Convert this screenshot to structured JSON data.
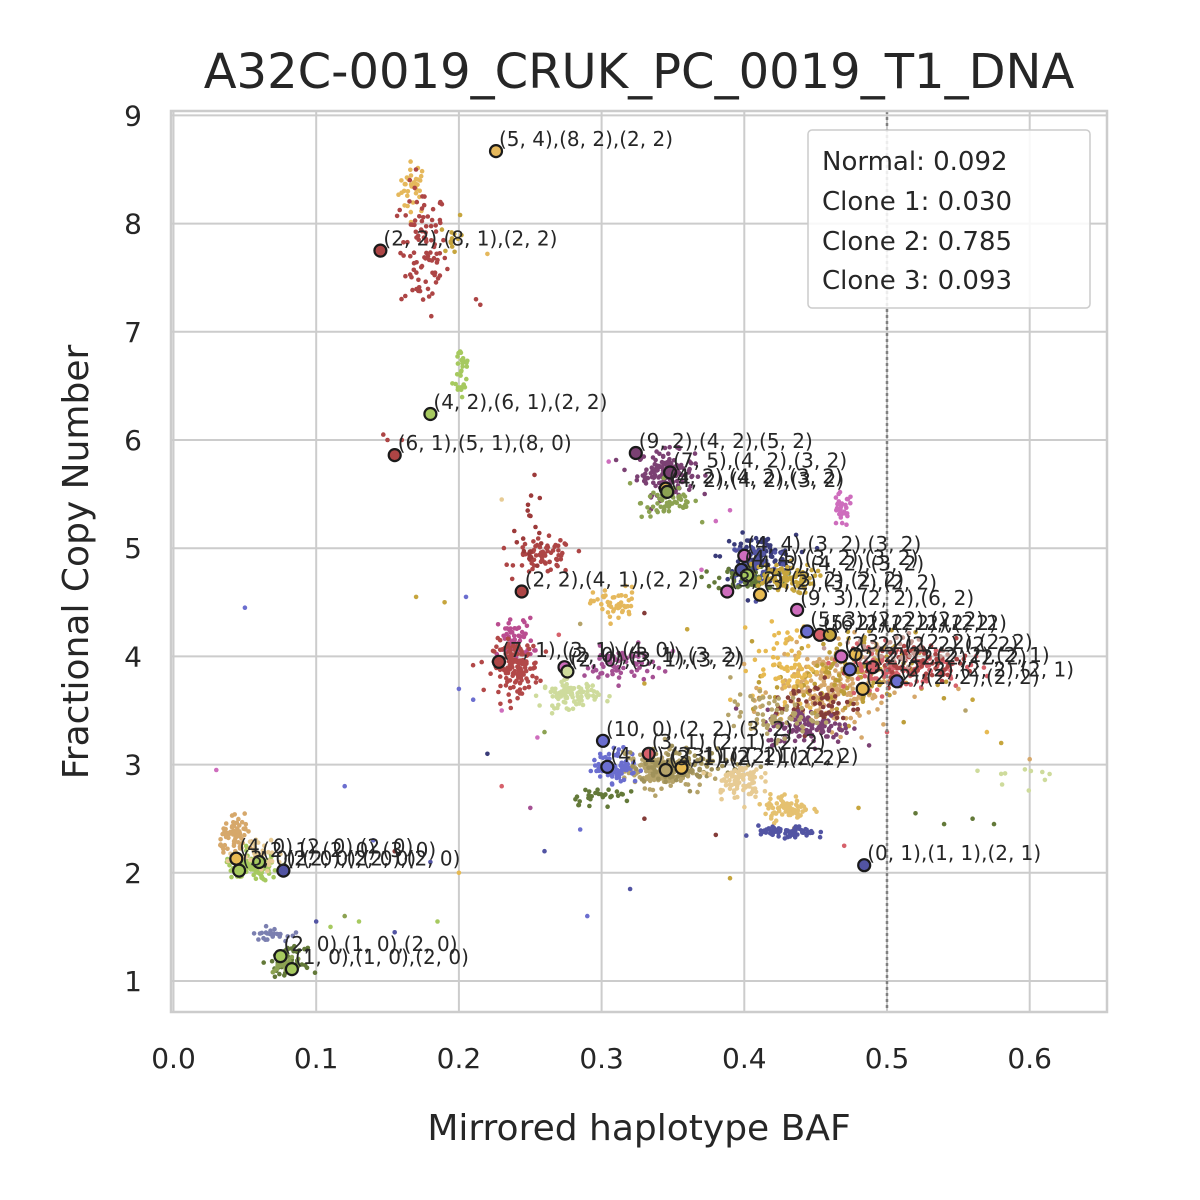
{
  "chart_data": {
    "type": "scatter",
    "title": "A32C-0019_CRUK_PC_0019_T1_DNA",
    "xlabel": "Mirrored haplotype BAF",
    "ylabel": "Fractional Copy Number",
    "xlim": [
      0.0,
      0.655
    ],
    "ylim": [
      0.72,
      9.1
    ],
    "xticks": [
      "0.0",
      "0.1",
      "0.2",
      "0.3",
      "0.4",
      "0.5",
      "0.6"
    ],
    "yticks": [
      "1",
      "2",
      "3",
      "4",
      "5",
      "6",
      "7",
      "8",
      "9"
    ],
    "grid": true,
    "reference_line_x": 0.5,
    "legend_position": "top-right",
    "legend_entries": [
      "Normal: 0.092",
      "Clone 1: 0.030",
      "Clone 2: 0.785",
      "Clone 3: 0.093"
    ],
    "clusters": [
      {
        "color": "#e5b85c",
        "cx": 0.168,
        "cy": 8.33,
        "sx": 0.005,
        "sy": 0.12,
        "n": 35
      },
      {
        "color": "#ad4545",
        "cx": 0.175,
        "cy": 7.75,
        "sx": 0.008,
        "sy": 0.3,
        "n": 95
      },
      {
        "color": "#a6c95f",
        "cx": 0.202,
        "cy": 6.65,
        "sx": 0.003,
        "sy": 0.15,
        "n": 30
      },
      {
        "color": "#c6a53d",
        "cx": 0.195,
        "cy": 7.9,
        "sx": 0.004,
        "sy": 0.12,
        "n": 12
      },
      {
        "color": "#7b4173",
        "cx": 0.345,
        "cy": 5.7,
        "sx": 0.01,
        "sy": 0.1,
        "n": 140
      },
      {
        "color": "#8ca252",
        "cx": 0.348,
        "cy": 5.42,
        "sx": 0.01,
        "sy": 0.07,
        "n": 60
      },
      {
        "color": "#ce6dbd",
        "cx": 0.468,
        "cy": 5.35,
        "sx": 0.004,
        "sy": 0.08,
        "n": 30
      },
      {
        "color": "#ad4545",
        "cx": 0.26,
        "cy": 4.92,
        "sx": 0.01,
        "sy": 0.08,
        "n": 70
      },
      {
        "color": "#9c3a3a",
        "cx": 0.25,
        "cy": 5.2,
        "sx": 0.005,
        "sy": 0.2,
        "n": 20
      },
      {
        "color": "#393b79",
        "cx": 0.41,
        "cy": 4.92,
        "sx": 0.013,
        "sy": 0.1,
        "n": 100
      },
      {
        "color": "#5254a3",
        "cx": 0.41,
        "cy": 4.85,
        "sx": 0.01,
        "sy": 0.12,
        "n": 70
      },
      {
        "color": "#637939",
        "cx": 0.405,
        "cy": 4.72,
        "sx": 0.012,
        "sy": 0.06,
        "n": 70
      },
      {
        "color": "#c6a53d",
        "cx": 0.425,
        "cy": 4.72,
        "sx": 0.012,
        "sy": 0.07,
        "n": 90
      },
      {
        "color": "#e5b85c",
        "cx": 0.31,
        "cy": 4.48,
        "sx": 0.008,
        "sy": 0.08,
        "n": 50
      },
      {
        "color": "#ba4d90",
        "cx": 0.24,
        "cy": 4.15,
        "sx": 0.006,
        "sy": 0.1,
        "n": 60
      },
      {
        "color": "#b24848",
        "cx": 0.24,
        "cy": 3.9,
        "sx": 0.008,
        "sy": 0.12,
        "n": 150
      },
      {
        "color": "#cedb9c",
        "cx": 0.278,
        "cy": 3.65,
        "sx": 0.01,
        "sy": 0.06,
        "n": 90
      },
      {
        "color": "#a55194",
        "cx": 0.312,
        "cy": 3.92,
        "sx": 0.012,
        "sy": 0.08,
        "n": 70
      },
      {
        "color": "#d6a86b",
        "cx": 0.46,
        "cy": 3.7,
        "sx": 0.02,
        "sy": 0.18,
        "n": 220
      },
      {
        "color": "#bd9e39",
        "cx": 0.47,
        "cy": 3.82,
        "sx": 0.025,
        "sy": 0.2,
        "n": 120
      },
      {
        "color": "#e7ba52",
        "cx": 0.43,
        "cy": 3.9,
        "sx": 0.012,
        "sy": 0.2,
        "n": 80
      },
      {
        "color": "#843c39",
        "cx": 0.45,
        "cy": 3.55,
        "sx": 0.015,
        "sy": 0.12,
        "n": 60
      },
      {
        "color": "#7b4173",
        "cx": 0.445,
        "cy": 3.35,
        "sx": 0.015,
        "sy": 0.08,
        "n": 120
      },
      {
        "color": "#d6616b",
        "cx": 0.51,
        "cy": 3.9,
        "sx": 0.022,
        "sy": 0.1,
        "n": 120
      },
      {
        "color": "#ad4545",
        "cx": 0.52,
        "cy": 3.95,
        "sx": 0.018,
        "sy": 0.08,
        "n": 70
      },
      {
        "color": "#c49c94",
        "cx": 0.505,
        "cy": 4.05,
        "sx": 0.02,
        "sy": 0.08,
        "n": 40
      },
      {
        "color": "#b5a36a",
        "cx": 0.42,
        "cy": 3.45,
        "sx": 0.015,
        "sy": 0.1,
        "n": 70
      },
      {
        "color": "#b5a36a",
        "cx": 0.34,
        "cy": 2.95,
        "sx": 0.012,
        "sy": 0.08,
        "n": 220
      },
      {
        "color": "#6b6ecf",
        "cx": 0.31,
        "cy": 2.98,
        "sx": 0.008,
        "sy": 0.08,
        "n": 80
      },
      {
        "color": "#a0925a",
        "cx": 0.36,
        "cy": 3.0,
        "sx": 0.02,
        "sy": 0.08,
        "n": 100
      },
      {
        "color": "#e7cb94",
        "cx": 0.395,
        "cy": 2.85,
        "sx": 0.008,
        "sy": 0.08,
        "n": 80
      },
      {
        "color": "#e5c170",
        "cx": 0.43,
        "cy": 2.6,
        "sx": 0.008,
        "sy": 0.06,
        "n": 70
      },
      {
        "color": "#5254a3",
        "cx": 0.43,
        "cy": 2.37,
        "sx": 0.01,
        "sy": 0.03,
        "n": 70
      },
      {
        "color": "#637939",
        "cx": 0.3,
        "cy": 2.72,
        "sx": 0.012,
        "sy": 0.04,
        "n": 30
      },
      {
        "color": "#d6a86b",
        "cx": 0.045,
        "cy": 2.33,
        "sx": 0.006,
        "sy": 0.08,
        "n": 70
      },
      {
        "color": "#a6c95f",
        "cx": 0.055,
        "cy": 2.05,
        "sx": 0.01,
        "sy": 0.06,
        "n": 110
      },
      {
        "color": "#e7cb94",
        "cx": 0.06,
        "cy": 2.2,
        "sx": 0.008,
        "sy": 0.08,
        "n": 40
      },
      {
        "color": "#7b7fb0",
        "cx": 0.068,
        "cy": 1.43,
        "sx": 0.006,
        "sy": 0.03,
        "n": 25
      },
      {
        "color": "#637939",
        "cx": 0.08,
        "cy": 1.18,
        "sx": 0.006,
        "sy": 0.06,
        "n": 60
      },
      {
        "color": "#8ca252",
        "cx": 0.078,
        "cy": 1.15,
        "sx": 0.004,
        "sy": 0.04,
        "n": 30
      },
      {
        "color": "#cedb9c",
        "cx": 0.6,
        "cy": 2.9,
        "sx": 0.015,
        "sy": 0.06,
        "n": 10
      }
    ],
    "scatter_points": [
      {
        "x": 0.05,
        "y": 4.45,
        "color": "#6b6ecf"
      },
      {
        "x": 0.03,
        "y": 2.95,
        "color": "#ce6dbd"
      },
      {
        "x": 0.2,
        "y": 3.7,
        "color": "#6b6ecf"
      },
      {
        "x": 0.21,
        "y": 3.6,
        "color": "#6b6ecf"
      },
      {
        "x": 0.205,
        "y": 4.55,
        "color": "#6b6ecf"
      },
      {
        "x": 0.12,
        "y": 2.8,
        "color": "#6b6ecf"
      },
      {
        "x": 0.14,
        "y": 2.3,
        "color": "#6b6ecf"
      },
      {
        "x": 0.19,
        "y": 4.5,
        "color": "#c6a53d"
      },
      {
        "x": 0.23,
        "y": 3.5,
        "color": "#ce6dbd"
      },
      {
        "x": 0.22,
        "y": 3.1,
        "color": "#393b79"
      },
      {
        "x": 0.155,
        "y": 2.2,
        "color": "#843c39"
      },
      {
        "x": 0.18,
        "y": 2.1,
        "color": "#5254a3"
      },
      {
        "x": 0.2,
        "y": 2.0,
        "color": "#e7ba52"
      },
      {
        "x": 0.23,
        "y": 2.8,
        "color": "#d6616b"
      },
      {
        "x": 0.25,
        "y": 2.6,
        "color": "#a55194"
      },
      {
        "x": 0.26,
        "y": 2.2,
        "color": "#5254a3"
      },
      {
        "x": 0.285,
        "y": 2.4,
        "color": "#6b6ecf"
      },
      {
        "x": 0.29,
        "y": 1.6,
        "color": "#6b6ecf"
      },
      {
        "x": 0.32,
        "y": 1.85,
        "color": "#5254a3"
      },
      {
        "x": 0.33,
        "y": 2.5,
        "color": "#843c39"
      },
      {
        "x": 0.38,
        "y": 2.35,
        "color": "#843c39"
      },
      {
        "x": 0.39,
        "y": 1.95,
        "color": "#c6a53d"
      },
      {
        "x": 0.52,
        "y": 2.55,
        "color": "#637939"
      },
      {
        "x": 0.54,
        "y": 2.45,
        "color": "#637939"
      },
      {
        "x": 0.56,
        "y": 2.5,
        "color": "#637939"
      },
      {
        "x": 0.575,
        "y": 2.45,
        "color": "#637939"
      },
      {
        "x": 0.57,
        "y": 3.3,
        "color": "#e7ba52"
      },
      {
        "x": 0.58,
        "y": 3.2,
        "color": "#c6a53d"
      },
      {
        "x": 0.6,
        "y": 3.05,
        "color": "#d6a86b"
      },
      {
        "x": 0.48,
        "y": 2.6,
        "color": "#c6a53d"
      },
      {
        "x": 0.47,
        "y": 2.25,
        "color": "#d6616b"
      },
      {
        "x": 0.5,
        "y": 3.3,
        "color": "#d6616b"
      },
      {
        "x": 0.11,
        "y": 1.5,
        "color": "#a6c95f"
      },
      {
        "x": 0.12,
        "y": 1.6,
        "color": "#8ca252"
      },
      {
        "x": 0.1,
        "y": 1.55,
        "color": "#5254a3"
      },
      {
        "x": 0.13,
        "y": 1.55,
        "color": "#a6c95f"
      },
      {
        "x": 0.155,
        "y": 1.45,
        "color": "#5254a3"
      },
      {
        "x": 0.185,
        "y": 1.55,
        "color": "#a6c95f"
      },
      {
        "x": 0.23,
        "y": 5.45,
        "color": "#e7cb94"
      },
      {
        "x": 0.17,
        "y": 4.55,
        "color": "#c6a53d"
      },
      {
        "x": 0.15,
        "y": 6.0,
        "color": "#ad4545"
      },
      {
        "x": 0.147,
        "y": 6.05,
        "color": "#ad4545"
      },
      {
        "x": 0.16,
        "y": 6.0,
        "color": "#ad4545"
      },
      {
        "x": 0.22,
        "y": 7.72,
        "color": "#e5b85c"
      },
      {
        "x": 0.215,
        "y": 7.25,
        "color": "#ad4545"
      },
      {
        "x": 0.212,
        "y": 7.3,
        "color": "#ad4545"
      },
      {
        "x": 0.305,
        "y": 5.8,
        "color": "#ce6dbd"
      },
      {
        "x": 0.32,
        "y": 5.6,
        "color": "#8ca252"
      },
      {
        "x": 0.38,
        "y": 5.25,
        "color": "#ce6dbd"
      },
      {
        "x": 0.39,
        "y": 5.35,
        "color": "#ce6dbd"
      },
      {
        "x": 0.37,
        "y": 4.8,
        "color": "#ce6dbd"
      },
      {
        "x": 0.33,
        "y": 4.4,
        "color": "#843c39"
      },
      {
        "x": 0.35,
        "y": 4.05,
        "color": "#ce6dbd"
      },
      {
        "x": 0.27,
        "y": 4.2,
        "color": "#d6616b"
      },
      {
        "x": 0.285,
        "y": 4.3,
        "color": "#b5a36a"
      },
      {
        "x": 0.26,
        "y": 3.3,
        "color": "#8ca252"
      },
      {
        "x": 0.255,
        "y": 3.25,
        "color": "#ce6dbd"
      },
      {
        "x": 0.36,
        "y": 4.25,
        "color": "#c6a53d"
      },
      {
        "x": 0.33,
        "y": 3.75,
        "color": "#c6a53d"
      },
      {
        "x": 0.555,
        "y": 3.5,
        "color": "#b5a36a"
      },
      {
        "x": 0.55,
        "y": 3.7,
        "color": "#d6a86b"
      },
      {
        "x": 0.56,
        "y": 3.6,
        "color": "#c6a53d"
      }
    ],
    "copy_number_states": [
      {
        "x": 0.226,
        "y": 8.67,
        "color": "#e5b85c",
        "label": "(5, 4),(8, 2),(2, 2)"
      },
      {
        "x": 0.145,
        "y": 7.75,
        "color": "#ad4545",
        "label": "(2, 2),(8, 1),(2, 2)"
      },
      {
        "x": 0.18,
        "y": 6.24,
        "color": "#a6c95f",
        "label": "(4, 2),(6, 1),(2, 2)"
      },
      {
        "x": 0.155,
        "y": 5.86,
        "color": "#ad4545",
        "label": "(6, 1),(5, 1),(8, 0)"
      },
      {
        "x": 0.324,
        "y": 5.88,
        "color": "#7b4173",
        "label": "(9, 2),(4, 2),(5, 2)"
      },
      {
        "x": 0.348,
        "y": 5.7,
        "color": "#7b4173",
        "label": "(7, 5),(4, 2),(3, 2)"
      },
      {
        "x": 0.345,
        "y": 5.55,
        "color": "#e7ba52",
        "label": "(4, 2),(4, 2),(3, 2)"
      },
      {
        "x": 0.346,
        "y": 5.52,
        "color": "#8ca252",
        "label": "(4, 2),(4, 2),(3, 2)"
      },
      {
        "x": 0.4,
        "y": 4.93,
        "color": "#ce6dbd",
        "label": "(4, 4),(3, 2),(3, 2)"
      },
      {
        "x": 0.398,
        "y": 4.8,
        "color": "#5254a3",
        "label": "(4, 4),(3, 2),(3, 2)"
      },
      {
        "x": 0.402,
        "y": 4.75,
        "color": "#a6c95f",
        "label": "(4, 3),(4, 2),(3, 2)"
      },
      {
        "x": 0.388,
        "y": 4.6,
        "color": "#ce6dbd",
        "label": "(3, 2),(3, 2),(2, 2)"
      },
      {
        "x": 0.411,
        "y": 4.57,
        "color": "#e7ba52",
        "label": "(3, 2),(3, 2),(2, 2)"
      },
      {
        "x": 0.244,
        "y": 4.6,
        "color": "#ad4545",
        "label": "(2, 2),(4, 1),(2, 2)"
      },
      {
        "x": 0.437,
        "y": 4.43,
        "color": "#ce6dbd",
        "label": "(9, 3),(2, 2),(6, 2)"
      },
      {
        "x": 0.444,
        "y": 4.23,
        "color": "#6b6ecf",
        "label": "(5, 3),(2, 2),(2, 2)"
      },
      {
        "x": 0.453,
        "y": 4.2,
        "color": "#d6616b",
        "label": "(5, 2),(2, 2),(2, 2)"
      },
      {
        "x": 0.46,
        "y": 4.2,
        "color": "#c6a53d",
        "label": "(6, 2),(2, 2),(2, 2)"
      },
      {
        "x": 0.478,
        "y": 4.02,
        "color": "#e7ba52",
        "label": "(3, 2),(2, 2),(2, 2)"
      },
      {
        "x": 0.468,
        "y": 4.0,
        "color": "#ce6dbd",
        "label": "(2, 2),(2, 2),(2, 2)"
      },
      {
        "x": 0.474,
        "y": 3.88,
        "color": "#6b6ecf",
        "label": "(2, 2),(2, 2),(2, 2)"
      },
      {
        "x": 0.49,
        "y": 3.9,
        "color": "#d6616b",
        "label": "(2, 2),(2, 2),(2, 1)"
      },
      {
        "x": 0.483,
        "y": 3.7,
        "color": "#e7ba52",
        "label": "(2, 2),(2, 2),(2, 2)"
      },
      {
        "x": 0.507,
        "y": 3.77,
        "color": "#6b6ecf",
        "label": "(2, 2),(2, 2),(2, 1)"
      },
      {
        "x": 0.228,
        "y": 3.95,
        "color": "#ad4545",
        "label": "(7, 1),(3, 1),(4, 0)"
      },
      {
        "x": 0.274,
        "y": 3.9,
        "color": "#ce6dbd",
        "label": "(2, 0),(3, 1),(3, 2)"
      },
      {
        "x": 0.276,
        "y": 3.86,
        "color": "#cedb9c",
        "label": "(2, 0),(3, 1),(3, 2)"
      },
      {
        "x": 0.301,
        "y": 3.22,
        "color": "#6b6ecf",
        "label": "(10, 0),(2, 2),(3, 2)"
      },
      {
        "x": 0.304,
        "y": 2.98,
        "color": "#6b6ecf",
        "label": "(4, 1),(2, 1),(2, 2)"
      },
      {
        "x": 0.333,
        "y": 3.1,
        "color": "#d6616b",
        "label": "(3, 1),(2, 1),(2, 2)"
      },
      {
        "x": 0.345,
        "y": 2.95,
        "color": "#b5a36a",
        "label": "(3, 1),(2, 1),(2, 2)"
      },
      {
        "x": 0.356,
        "y": 2.97,
        "color": "#e7ba52",
        "label": "(3, 1),(2, 1),(2, 2)"
      },
      {
        "x": 0.484,
        "y": 2.07,
        "color": "#5254a3",
        "label": "(0, 1),(1, 1),(2, 1)"
      },
      {
        "x": 0.044,
        "y": 2.13,
        "color": "#e7ba52",
        "label": "(4, 0),(2, 0),(2, 0)"
      },
      {
        "x": 0.046,
        "y": 2.02,
        "color": "#a6c95f",
        "label": "(3, 0),(2, 0),(2, 0)"
      },
      {
        "x": 0.06,
        "y": 2.1,
        "color": "#a6c95f",
        "label": "(2, 1),(2, 0),(3, 0)"
      },
      {
        "x": 0.077,
        "y": 2.02,
        "color": "#5254a3",
        "label": "(2, 0),(2, 0),(2, 0)"
      },
      {
        "x": 0.075,
        "y": 1.23,
        "color": "#a6c95f",
        "label": "(2, 0),(1, 0),(2, 0)"
      },
      {
        "x": 0.083,
        "y": 1.11,
        "color": "#a6c95f",
        "label": "(1, 0),(1, 0),(2, 0)"
      }
    ]
  }
}
